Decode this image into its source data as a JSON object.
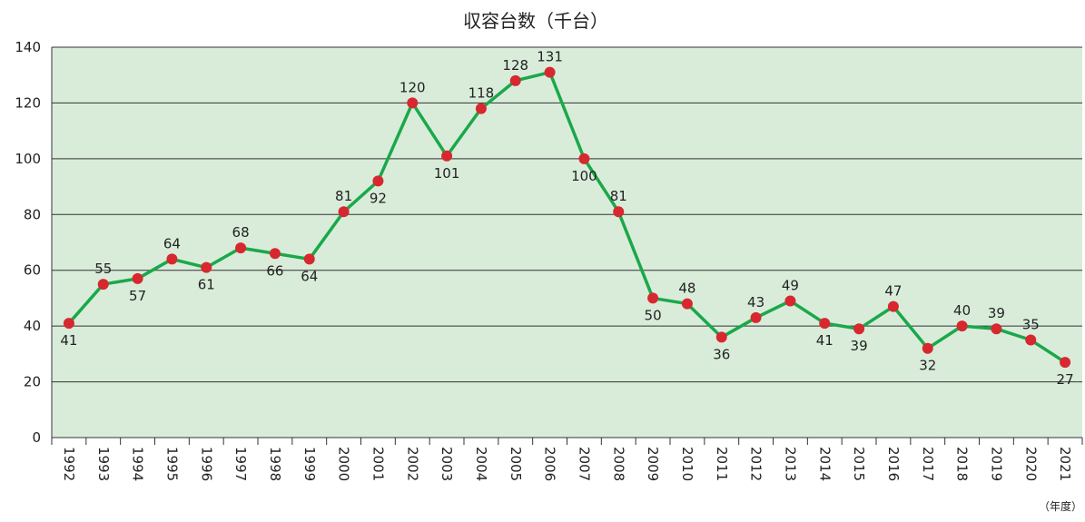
{
  "chart_data": {
    "type": "line",
    "title": "収容台数（千台）",
    "x_unit": "（年度）",
    "categories": [
      "1992",
      "1993",
      "1994",
      "1995",
      "1996",
      "1997",
      "1998",
      "1999",
      "2000",
      "2001",
      "2002",
      "2003",
      "2004",
      "2005",
      "2006",
      "2007",
      "2008",
      "2009",
      "2010",
      "2011",
      "2012",
      "2013",
      "2014",
      "2015",
      "2016",
      "2017",
      "2018",
      "2019",
      "2020",
      "2021"
    ],
    "series": [
      {
        "name": "収容台数",
        "color": "#1aa84a",
        "marker_color": "#d7282f",
        "values": [
          41,
          55,
          57,
          64,
          61,
          68,
          66,
          64,
          81,
          92,
          120,
          101,
          118,
          128,
          131,
          100,
          81,
          50,
          48,
          36,
          43,
          49,
          41,
          39,
          47,
          32,
          40,
          39,
          35,
          27
        ]
      }
    ],
    "ylim": [
      0,
      140
    ],
    "yticks": [
      0,
      20,
      40,
      60,
      80,
      100,
      120,
      140
    ],
    "grid": true,
    "plot_background": "#d9ecda"
  }
}
